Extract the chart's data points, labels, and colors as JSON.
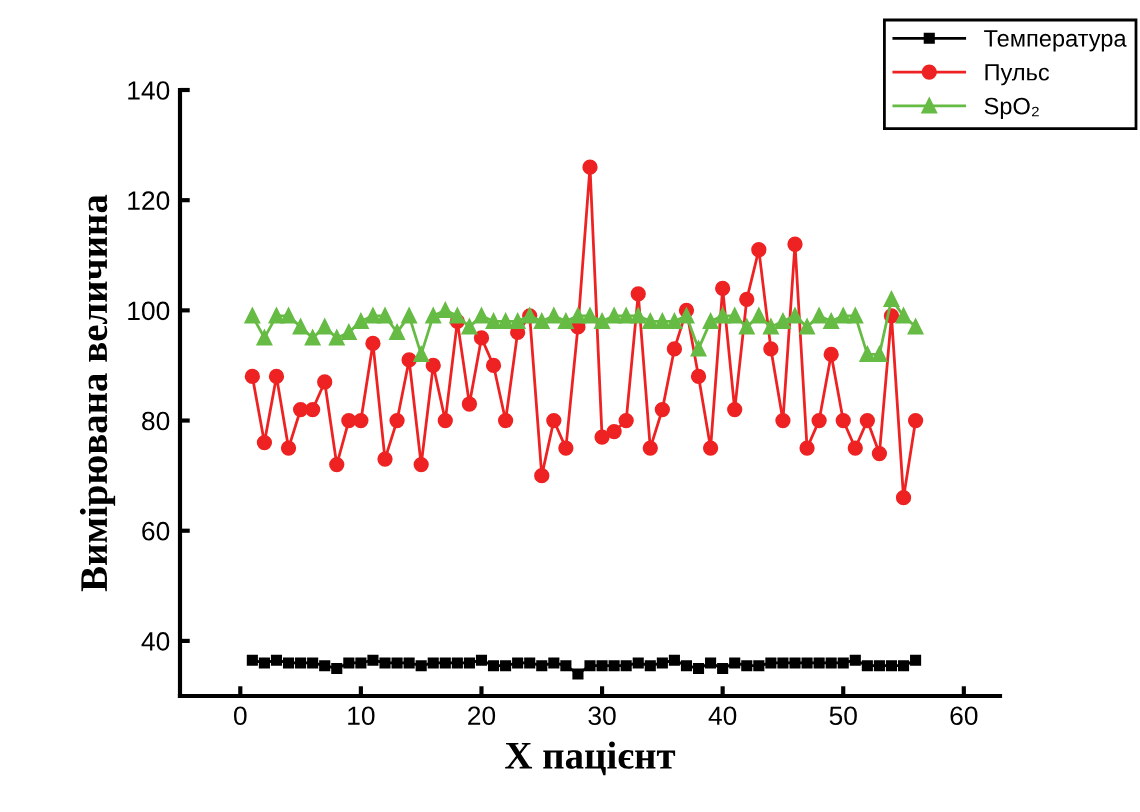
{
  "chart_data": {
    "type": "line",
    "xlabel": "X пацієнт",
    "ylabel": "Вимірювана величина",
    "x": [
      1,
      2,
      3,
      4,
      5,
      6,
      7,
      8,
      9,
      10,
      11,
      12,
      13,
      14,
      15,
      16,
      17,
      18,
      19,
      20,
      21,
      22,
      23,
      24,
      25,
      26,
      27,
      28,
      29,
      30,
      31,
      32,
      33,
      34,
      35,
      36,
      37,
      38,
      39,
      40,
      41,
      42,
      43,
      44,
      45,
      46,
      47,
      48,
      49,
      50,
      51,
      52,
      53,
      54,
      55,
      56
    ],
    "series": [
      {
        "name": "Температура",
        "color": "#000000",
        "marker": "square",
        "values": [
          36.5,
          36,
          36.5,
          36,
          36,
          36,
          35.5,
          35,
          36,
          36,
          36.5,
          36,
          36,
          36,
          35.5,
          36,
          36,
          36,
          36,
          36.5,
          35.5,
          35.5,
          36,
          36,
          35.5,
          36,
          35.5,
          34,
          35.5,
          35.5,
          35.5,
          35.5,
          36,
          35.5,
          36,
          36.5,
          35.5,
          35,
          36,
          35,
          36,
          35.5,
          35.5,
          36,
          36,
          36,
          36,
          36,
          36,
          36,
          36.5,
          35.5,
          35.5,
          35.5,
          35.5,
          36.5
        ]
      },
      {
        "name": "Пульс",
        "color": "#ee2222",
        "marker": "circle",
        "values": [
          88,
          76,
          88,
          75,
          82,
          82,
          87,
          72,
          80,
          80,
          94,
          73,
          80,
          91,
          72,
          90,
          80,
          98,
          83,
          95,
          90,
          80,
          96,
          99,
          70,
          80,
          75,
          97,
          126,
          77,
          78,
          80,
          103,
          75,
          82,
          93,
          100,
          88,
          75,
          104,
          82,
          102,
          111,
          93,
          80,
          112,
          75,
          80,
          92,
          80,
          75,
          80,
          74,
          99,
          66,
          80
        ]
      },
      {
        "name": "SpO₂",
        "color": "#66bb44",
        "marker": "triangle",
        "values": [
          99,
          95,
          99,
          99,
          97,
          95,
          97,
          95,
          96,
          98,
          99,
          99,
          96,
          99,
          92,
          99,
          100,
          99,
          97,
          99,
          98,
          98,
          98,
          99,
          98,
          99,
          98,
          99,
          99,
          98,
          99,
          99,
          99,
          98,
          98,
          98,
          99,
          93,
          98,
          99,
          99,
          97,
          99,
          97,
          98,
          99,
          97,
          99,
          98,
          99,
          99,
          92,
          92,
          102,
          99,
          97
        ]
      }
    ],
    "xlim": [
      -5,
      63
    ],
    "ylim": [
      30,
      140
    ],
    "xticks": [
      0,
      10,
      20,
      30,
      40,
      50,
      60
    ],
    "yticks": [
      40,
      60,
      80,
      100,
      120,
      140
    ],
    "grid": false,
    "legend": "top right"
  }
}
